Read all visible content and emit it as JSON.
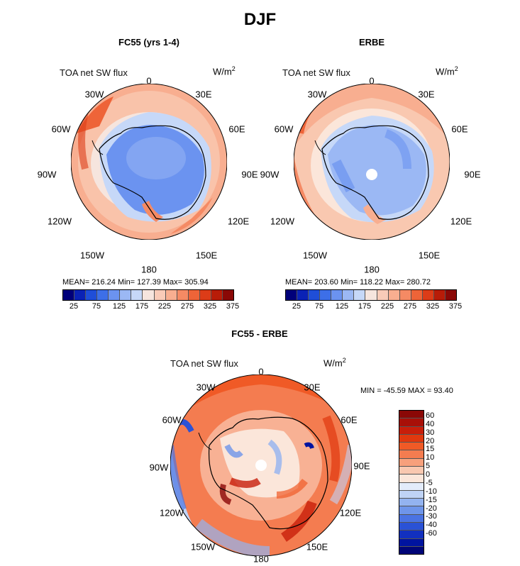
{
  "title": "DJF",
  "panels": {
    "fc55": {
      "title": "FC55 (yrs 1-4)",
      "variable": "TOA net SW flux",
      "unit": "W/m",
      "unit_exp": "2",
      "stats": "MEAN= 216.24   Min= 127.39   Max= 305.94"
    },
    "erbe": {
      "title": "ERBE",
      "variable": "TOA net SW flux",
      "unit": "W/m",
      "unit_exp": "2",
      "stats": "MEAN= 203.60   Min= 118.22   Max= 280.72"
    },
    "diff": {
      "title": "FC55 - ERBE",
      "variable": "TOA net SW flux",
      "unit": "W/m",
      "unit_exp": "2",
      "stats": "MIN = -45.59  MAX =  93.40"
    }
  },
  "longitude_labels": [
    "0",
    "30E",
    "60E",
    "90E",
    "120E",
    "150E",
    "180",
    "150W",
    "120W",
    "90W",
    "60W",
    "30W"
  ],
  "colorbar_top": {
    "colors": [
      "#00007a",
      "#0a22b5",
      "#1f4ed8",
      "#3d6fe8",
      "#6b93f0",
      "#9bb8f4",
      "#c6d8f8",
      "#f6e5de",
      "#f9cbb8",
      "#f8ae90",
      "#f58a64",
      "#ee6438",
      "#dc3c18",
      "#b81c08",
      "#8a0806"
    ],
    "labels": [
      "25",
      "75",
      "125",
      "175",
      "225",
      "275",
      "325",
      "375"
    ]
  },
  "colorbar_diff": {
    "colors": [
      "#8a0806",
      "#a81008",
      "#c81e0a",
      "#e0380e",
      "#f05a26",
      "#f47c50",
      "#f7a07c",
      "#f9c8b0",
      "#fbe6da",
      "#e3ecfb",
      "#bfd3f6",
      "#93b3f0",
      "#6e95ea",
      "#4a73e3",
      "#2a52d6",
      "#1230bf",
      "#0014a0",
      "#000578"
    ],
    "labels": [
      "60",
      "40",
      "30",
      "20",
      "15",
      "10",
      "5",
      "0",
      "-5",
      "-10",
      "-15",
      "-20",
      "-30",
      "-40",
      "-60"
    ]
  },
  "chart_data": {
    "type": "heatmap",
    "title": "DJF",
    "variable": "TOA net SW flux",
    "units": "W/m2",
    "projection": "south polar stereographic",
    "panels": [
      {
        "name": "FC55 (yrs 1-4)",
        "mean": 216.24,
        "min": 127.39,
        "max": 305.94,
        "levels": [
          25,
          50,
          75,
          100,
          125,
          150,
          175,
          200,
          225,
          250,
          275,
          300,
          325,
          350,
          375
        ]
      },
      {
        "name": "ERBE",
        "mean": 203.6,
        "min": 118.22,
        "max": 280.72,
        "levels": [
          25,
          50,
          75,
          100,
          125,
          150,
          175,
          200,
          225,
          250,
          275,
          300,
          325,
          350,
          375
        ]
      },
      {
        "name": "FC55 - ERBE",
        "min": -45.59,
        "max": 93.4,
        "levels": [
          -60,
          -40,
          -30,
          -20,
          -15,
          -10,
          -5,
          0,
          5,
          10,
          15,
          20,
          30,
          40,
          60
        ]
      }
    ]
  }
}
